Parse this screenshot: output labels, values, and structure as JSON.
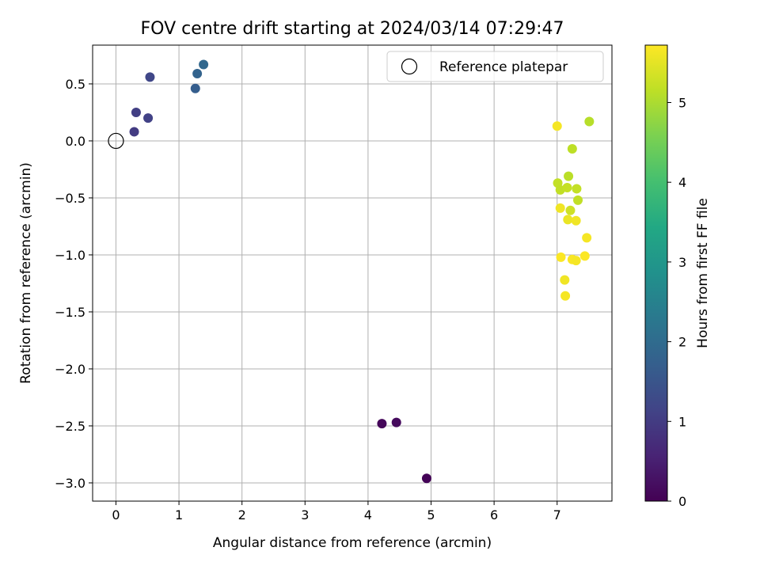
{
  "chart_data": {
    "type": "scatter",
    "title": "FOV centre drift starting at 2024/03/14 07:29:47",
    "xlabel": "Angular distance from reference (arcmin)",
    "ylabel": "Rotation from reference (arcmin)",
    "xlim": [
      -0.37,
      7.87
    ],
    "ylim": [
      -3.16,
      0.84
    ],
    "xticks": [
      0,
      1,
      2,
      3,
      4,
      5,
      6,
      7
    ],
    "yticks": [
      0.5,
      0.0,
      -0.5,
      -1.0,
      -1.5,
      -2.0,
      -2.5,
      -3.0
    ],
    "ytick_labels": [
      "0.5",
      "0.0",
      "−0.5",
      "−1.0",
      "−1.5",
      "−2.0",
      "−2.5",
      "−3.0"
    ],
    "grid": true,
    "legend": {
      "label": "Reference platepar",
      "placement": "top-right"
    },
    "reference_point": {
      "x": 0,
      "y": 0
    },
    "colorbar": {
      "label": "Hours from first FF file",
      "colormap": "viridis",
      "range": [
        0,
        5.72
      ],
      "ticks": [
        0,
        1,
        2,
        3,
        4,
        5
      ]
    },
    "points": [
      {
        "x": 4.22,
        "y": -2.48,
        "h": 0.1
      },
      {
        "x": 4.45,
        "y": -2.47,
        "h": 0.15
      },
      {
        "x": 4.93,
        "y": -2.96,
        "h": 0.05
      },
      {
        "x": 0.29,
        "y": 0.08,
        "h": 1.0
      },
      {
        "x": 0.32,
        "y": 0.25,
        "h": 1.05
      },
      {
        "x": 0.51,
        "y": 0.2,
        "h": 1.1
      },
      {
        "x": 0.54,
        "y": 0.56,
        "h": 1.2
      },
      {
        "x": 1.26,
        "y": 0.46,
        "h": 1.7
      },
      {
        "x": 1.29,
        "y": 0.59,
        "h": 1.8
      },
      {
        "x": 1.39,
        "y": 0.67,
        "h": 1.9
      },
      {
        "x": 7.0,
        "y": 0.13,
        "h": 5.65
      },
      {
        "x": 7.51,
        "y": 0.17,
        "h": 5.1
      },
      {
        "x": 7.24,
        "y": -0.07,
        "h": 5.15
      },
      {
        "x": 7.18,
        "y": -0.31,
        "h": 5.12
      },
      {
        "x": 7.01,
        "y": -0.37,
        "h": 5.2
      },
      {
        "x": 7.05,
        "y": -0.43,
        "h": 5.18
      },
      {
        "x": 7.16,
        "y": -0.41,
        "h": 5.22
      },
      {
        "x": 7.31,
        "y": -0.42,
        "h": 5.2
      },
      {
        "x": 7.33,
        "y": -0.52,
        "h": 5.18
      },
      {
        "x": 7.21,
        "y": -0.61,
        "h": 5.3
      },
      {
        "x": 7.05,
        "y": -0.59,
        "h": 5.6
      },
      {
        "x": 7.17,
        "y": -0.69,
        "h": 5.55
      },
      {
        "x": 7.3,
        "y": -0.7,
        "h": 5.6
      },
      {
        "x": 7.47,
        "y": -0.85,
        "h": 5.65
      },
      {
        "x": 7.06,
        "y": -1.02,
        "h": 5.7
      },
      {
        "x": 7.24,
        "y": -1.04,
        "h": 5.68
      },
      {
        "x": 7.3,
        "y": -1.05,
        "h": 5.65
      },
      {
        "x": 7.44,
        "y": -1.01,
        "h": 5.7
      },
      {
        "x": 7.12,
        "y": -1.22,
        "h": 5.6
      },
      {
        "x": 7.13,
        "y": -1.36,
        "h": 5.65
      }
    ]
  }
}
